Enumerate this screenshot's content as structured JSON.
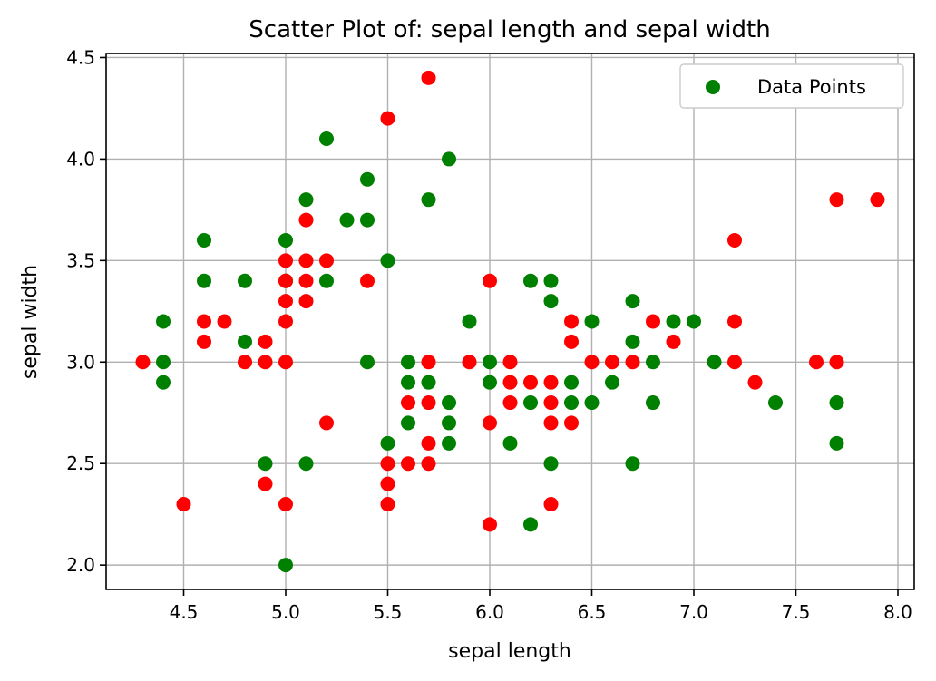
{
  "chart_data": {
    "type": "scatter",
    "title": "Scatter Plot of: sepal length and sepal width",
    "xlabel": "sepal length",
    "ylabel": "sepal width",
    "xlim": [
      4.12,
      8.08
    ],
    "ylim": [
      1.88,
      4.52
    ],
    "xticks": [
      4.5,
      5.0,
      5.5,
      6.0,
      6.5,
      7.0,
      7.5,
      8.0
    ],
    "xtick_labels": [
      "4.5",
      "5.0",
      "5.5",
      "6.0",
      "6.5",
      "7.0",
      "7.5",
      "8.0"
    ],
    "yticks": [
      2.0,
      2.5,
      3.0,
      3.5,
      4.0,
      4.5
    ],
    "ytick_labels": [
      "2.0",
      "2.5",
      "3.0",
      "3.5",
      "4.0",
      "4.5"
    ],
    "grid": true,
    "legend": {
      "position": "top-right",
      "label": "Data Points",
      "color": "#008000"
    },
    "colors": {
      "green": "#008000",
      "red": "#ff0000"
    },
    "series": [
      {
        "name": "Data Points",
        "color": "#008000",
        "points": [
          [
            4.4,
            3.2
          ],
          [
            4.4,
            3.0
          ],
          [
            4.4,
            2.9
          ],
          [
            4.6,
            3.6
          ],
          [
            4.6,
            3.4
          ],
          [
            4.8,
            3.4
          ],
          [
            4.8,
            3.1
          ],
          [
            4.9,
            2.5
          ],
          [
            5.0,
            3.6
          ],
          [
            5.0,
            3.4
          ],
          [
            5.0,
            2.0
          ],
          [
            5.1,
            3.8
          ],
          [
            5.1,
            2.5
          ],
          [
            5.2,
            4.1
          ],
          [
            5.2,
            3.4
          ],
          [
            5.3,
            3.7
          ],
          [
            5.4,
            3.9
          ],
          [
            5.4,
            3.7
          ],
          [
            5.4,
            3.0
          ],
          [
            5.5,
            3.5
          ],
          [
            5.5,
            2.6
          ],
          [
            5.6,
            3.0
          ],
          [
            5.6,
            2.9
          ],
          [
            5.6,
            2.7
          ],
          [
            5.7,
            3.8
          ],
          [
            5.7,
            2.9
          ],
          [
            5.8,
            4.0
          ],
          [
            5.8,
            2.8
          ],
          [
            5.8,
            2.7
          ],
          [
            5.8,
            2.6
          ],
          [
            5.9,
            3.2
          ],
          [
            6.0,
            3.0
          ],
          [
            6.0,
            2.9
          ],
          [
            6.1,
            2.6
          ],
          [
            6.2,
            3.4
          ],
          [
            6.2,
            2.8
          ],
          [
            6.2,
            2.2
          ],
          [
            6.3,
            3.4
          ],
          [
            6.3,
            3.3
          ],
          [
            6.3,
            2.5
          ],
          [
            6.4,
            2.9
          ],
          [
            6.4,
            2.8
          ],
          [
            6.5,
            3.2
          ],
          [
            6.5,
            2.8
          ],
          [
            6.6,
            2.9
          ],
          [
            6.7,
            3.3
          ],
          [
            6.7,
            3.1
          ],
          [
            6.7,
            2.5
          ],
          [
            6.8,
            3.0
          ],
          [
            6.8,
            2.8
          ],
          [
            6.9,
            3.2
          ],
          [
            7.0,
            3.2
          ],
          [
            7.1,
            3.0
          ],
          [
            7.4,
            2.8
          ],
          [
            7.7,
            2.8
          ],
          [
            7.7,
            2.6
          ]
        ]
      },
      {
        "color": "#ff0000",
        "points": [
          [
            4.3,
            3.0
          ],
          [
            4.5,
            2.3
          ],
          [
            4.6,
            3.2
          ],
          [
            4.6,
            3.1
          ],
          [
            4.7,
            3.2
          ],
          [
            4.8,
            3.0
          ],
          [
            4.9,
            3.1
          ],
          [
            4.9,
            3.0
          ],
          [
            4.9,
            2.4
          ],
          [
            5.0,
            3.5
          ],
          [
            5.0,
            3.4
          ],
          [
            5.0,
            3.3
          ],
          [
            5.0,
            3.2
          ],
          [
            5.0,
            3.0
          ],
          [
            5.0,
            2.3
          ],
          [
            5.1,
            3.7
          ],
          [
            5.1,
            3.5
          ],
          [
            5.1,
            3.4
          ],
          [
            5.1,
            3.3
          ],
          [
            5.2,
            3.5
          ],
          [
            5.2,
            2.7
          ],
          [
            5.4,
            3.4
          ],
          [
            5.5,
            4.2
          ],
          [
            5.5,
            2.5
          ],
          [
            5.5,
            2.4
          ],
          [
            5.5,
            2.3
          ],
          [
            5.6,
            2.8
          ],
          [
            5.6,
            2.5
          ],
          [
            5.7,
            4.4
          ],
          [
            5.7,
            3.0
          ],
          [
            5.7,
            2.8
          ],
          [
            5.7,
            2.6
          ],
          [
            5.7,
            2.5
          ],
          [
            5.9,
            3.0
          ],
          [
            6.0,
            3.4
          ],
          [
            6.0,
            2.7
          ],
          [
            6.0,
            2.2
          ],
          [
            6.1,
            3.0
          ],
          [
            6.1,
            2.9
          ],
          [
            6.1,
            2.8
          ],
          [
            6.2,
            2.9
          ],
          [
            6.3,
            2.9
          ],
          [
            6.3,
            2.8
          ],
          [
            6.3,
            2.7
          ],
          [
            6.3,
            2.3
          ],
          [
            6.4,
            3.2
          ],
          [
            6.4,
            3.1
          ],
          [
            6.4,
            2.7
          ],
          [
            6.5,
            3.0
          ],
          [
            6.6,
            3.0
          ],
          [
            6.7,
            3.0
          ],
          [
            6.8,
            3.2
          ],
          [
            6.9,
            3.1
          ],
          [
            7.2,
            3.6
          ],
          [
            7.2,
            3.2
          ],
          [
            7.2,
            3.0
          ],
          [
            7.3,
            2.9
          ],
          [
            7.6,
            3.0
          ],
          [
            7.7,
            3.8
          ],
          [
            7.7,
            3.0
          ],
          [
            7.9,
            3.8
          ]
        ]
      }
    ]
  }
}
